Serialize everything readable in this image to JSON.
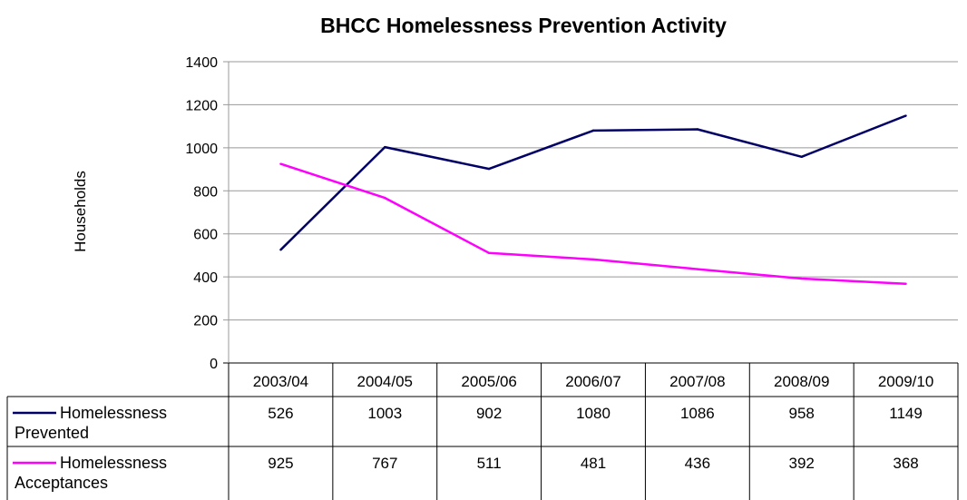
{
  "chart_data": {
    "type": "line",
    "title": "BHCC Homelessness Prevention Activity",
    "ylabel": "Households",
    "xlabel": "",
    "ylim": [
      0,
      1400
    ],
    "yticks": [
      0,
      200,
      400,
      600,
      800,
      1000,
      1200,
      1400
    ],
    "grid": true,
    "legend": "data-table-left",
    "categories": [
      "2003/04",
      "2004/05",
      "2005/06",
      "2006/07",
      "2007/08",
      "2008/09",
      "2009/10"
    ],
    "series": [
      {
        "name_lines": [
          "Homelessness",
          "Prevented"
        ],
        "color": "#000066",
        "values": [
          526,
          1003,
          902,
          1080,
          1086,
          958,
          1149
        ]
      },
      {
        "name_lines": [
          "Homelessness",
          "Acceptances"
        ],
        "color": "#ff00ff",
        "values": [
          925,
          767,
          511,
          481,
          436,
          392,
          368
        ]
      }
    ]
  }
}
